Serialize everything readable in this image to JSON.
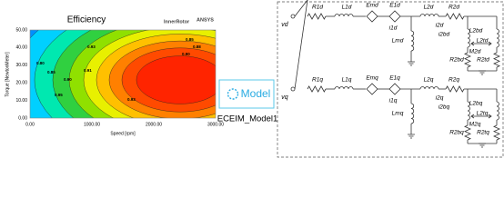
{
  "efficiency_plot": {
    "title": "Efficiency",
    "subtitle": "InnerRotor",
    "brand": "ANSYS",
    "y_label": "Torque [NewtonMeter]",
    "x_label": "Speed [rpm]",
    "x_ticks": [
      "0.00",
      "1000.00",
      "2000.00",
      "3000.00"
    ],
    "y_ticks": [
      "0.00",
      "10.00",
      "20.00",
      "30.00",
      "40.00",
      "50.00"
    ],
    "contour_labels": [
      "0.85",
      "0.88",
      "0.90",
      "0.91",
      "0.93",
      "0.95",
      "0.90",
      "0.85",
      "0.80",
      "0.93"
    ]
  },
  "model_block": {
    "label": "Model",
    "name": "ECEIM_Model1"
  },
  "circuits": [
    {
      "source": "vd",
      "r1": "R1d",
      "l1": "L1d",
      "em": "Emd",
      "e1": "E1d",
      "i1": "i1d",
      "l2": "L2d",
      "r2": "R2d",
      "i2": "i2d",
      "lm": "Lmd",
      "i2b": "i2bd",
      "l2b": "L2bd",
      "l2t": "L2td",
      "m2": "M2d",
      "r2b": "R2bd",
      "r2t": "R2td"
    },
    {
      "source": "vq",
      "r1": "R1q",
      "l1": "L1q",
      "em": "Emq",
      "e1": "E1q",
      "i1": "i1q",
      "l2": "L2q",
      "r2": "R2q",
      "i2": "i2q",
      "lm": "Lmq",
      "i2b": "i2bq",
      "l2b": "L2bq",
      "l2t": "L2tq",
      "m2": "M2q",
      "r2b": "R2bq",
      "r2t": "R2tq"
    }
  ]
}
